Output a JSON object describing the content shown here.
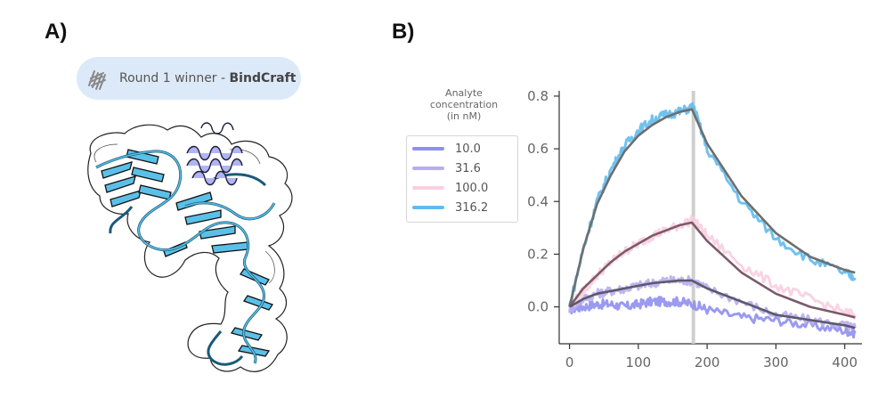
{
  "panels": {
    "a_label": "A)",
    "b_label": "B)"
  },
  "winner_pill": {
    "prefix": "Round 1 winner - ",
    "method": "BindCraft",
    "icon": "helix-bundle-icon"
  },
  "structure": {
    "target_color": "#5bc0e8",
    "binder_color": "#b0b4f0",
    "outline_color": "#111111"
  },
  "chart_data": {
    "type": "line",
    "xlim": [
      -15,
      425
    ],
    "ylim": [
      -0.14,
      0.82
    ],
    "xticks": [
      0,
      100,
      200,
      300,
      400
    ],
    "yticks": [
      0.0,
      0.2,
      0.4,
      0.6,
      0.8
    ],
    "xtick_labels": [
      "0",
      "100",
      "200",
      "300",
      "400"
    ],
    "ytick_labels": [
      "0.0",
      "0.2",
      "0.4",
      "0.6",
      "0.8"
    ],
    "vline_x": 180,
    "legend_title": [
      "Analyte",
      "concentration",
      "(in nM)"
    ],
    "legend_position": "left",
    "series": [
      {
        "name": "10.0",
        "color": "#8f8ff0",
        "x": [
          0,
          20,
          40,
          60,
          80,
          100,
          120,
          140,
          160,
          180,
          200,
          250,
          300,
          350,
          400,
          415
        ],
        "y": [
          -0.01,
          0.0,
          0.01,
          0.01,
          0.0,
          0.01,
          0.02,
          0.02,
          0.02,
          0.01,
          -0.01,
          -0.04,
          -0.05,
          -0.07,
          -0.09,
          -0.1
        ]
      },
      {
        "name": "31.6",
        "color": "#b9acf0",
        "x": [
          0,
          20,
          40,
          60,
          80,
          100,
          120,
          140,
          160,
          180,
          200,
          250,
          300,
          350,
          400,
          415
        ],
        "y": [
          -0.01,
          0.03,
          0.05,
          0.06,
          0.07,
          0.08,
          0.09,
          0.1,
          0.1,
          0.1,
          0.07,
          0.02,
          -0.03,
          -0.05,
          -0.07,
          -0.08
        ]
      },
      {
        "name": "100.0",
        "color": "#f8cfe0",
        "x": [
          0,
          20,
          40,
          60,
          80,
          100,
          120,
          140,
          160,
          180,
          200,
          250,
          300,
          350,
          400,
          415
        ],
        "y": [
          0.0,
          0.06,
          0.12,
          0.17,
          0.21,
          0.24,
          0.27,
          0.29,
          0.31,
          0.33,
          0.27,
          0.16,
          0.08,
          0.03,
          -0.02,
          -0.03
        ]
      },
      {
        "name": "316.2",
        "color": "#5fbbee",
        "x": [
          0,
          20,
          40,
          60,
          80,
          100,
          120,
          140,
          160,
          180,
          200,
          250,
          300,
          350,
          400,
          415
        ],
        "y": [
          0.0,
          0.22,
          0.4,
          0.52,
          0.61,
          0.67,
          0.71,
          0.73,
          0.74,
          0.76,
          0.6,
          0.4,
          0.26,
          0.18,
          0.13,
          0.11
        ]
      }
    ],
    "fits": [
      {
        "color": "#6e6e6e",
        "x": [
          0,
          20,
          40,
          60,
          80,
          100,
          120,
          140,
          160,
          178,
          200,
          250,
          300,
          350,
          400,
          415
        ],
        "y": [
          0.0,
          0.22,
          0.39,
          0.5,
          0.59,
          0.65,
          0.69,
          0.72,
          0.74,
          0.75,
          0.62,
          0.42,
          0.28,
          0.19,
          0.14,
          0.13
        ]
      },
      {
        "color": "#7c5a6a",
        "x": [
          0,
          20,
          40,
          60,
          80,
          100,
          120,
          140,
          160,
          178,
          200,
          250,
          300,
          350,
          400,
          415
        ],
        "y": [
          0.0,
          0.07,
          0.12,
          0.17,
          0.21,
          0.24,
          0.27,
          0.29,
          0.31,
          0.32,
          0.25,
          0.13,
          0.05,
          0.0,
          -0.03,
          -0.04
        ]
      },
      {
        "color": "#5a5a6a",
        "x": [
          0,
          20,
          40,
          60,
          80,
          100,
          120,
          140,
          160,
          178,
          200,
          250,
          300,
          350,
          400,
          415
        ],
        "y": [
          0.0,
          0.03,
          0.05,
          0.06,
          0.07,
          0.08,
          0.09,
          0.095,
          0.1,
          0.1,
          0.07,
          0.02,
          -0.03,
          -0.05,
          -0.07,
          -0.08
        ]
      }
    ]
  }
}
